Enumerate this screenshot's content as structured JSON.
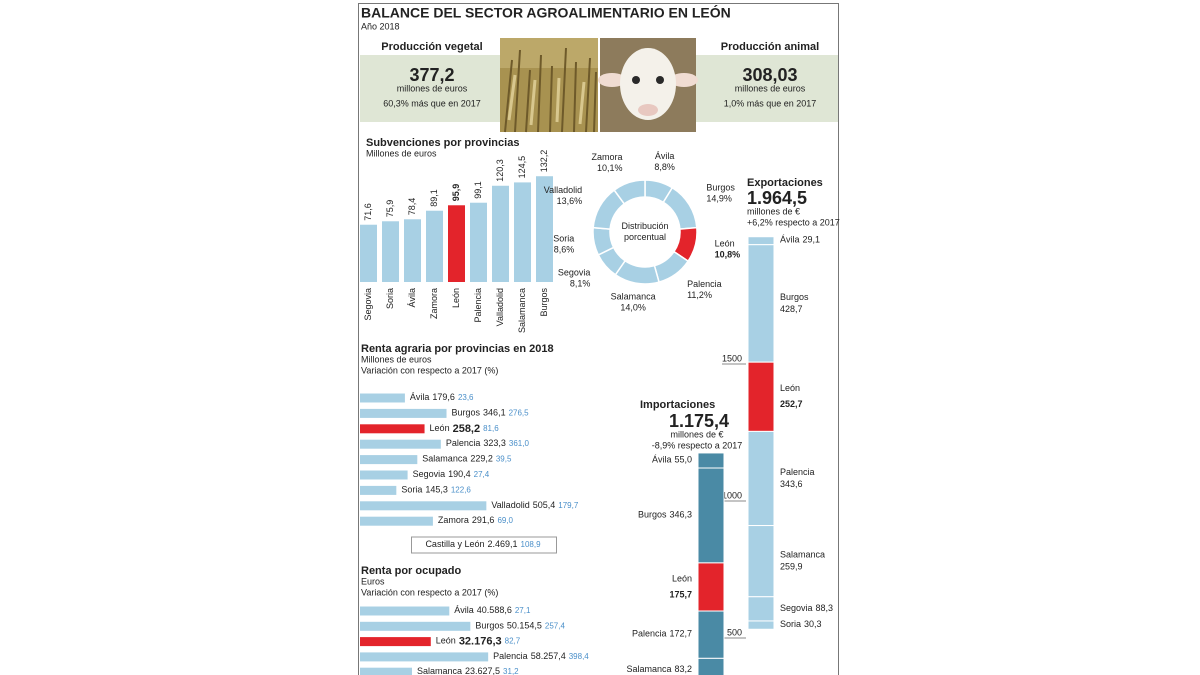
{
  "header": {
    "title": "BALANCE DEL SECTOR AGROALIMENTARIO EN LEÓN",
    "subtitle": "Año 2018"
  },
  "production": [
    {
      "title": "Producción vegetal",
      "value": "377,2",
      "unit": "millones de euros",
      "change": "60,3% más que en 2017"
    },
    {
      "title": "Producción animal",
      "value": "308,03",
      "unit": "millones de euros",
      "change": "1,0% más que en 2017"
    }
  ],
  "chart_data": [
    {
      "type": "bar",
      "title": "Subvenciones por provincias",
      "subtitle": "Millones de euros",
      "categories": [
        "Segovia",
        "Soria",
        "Ávila",
        "Zamora",
        "León",
        "Palencia",
        "Valladolid",
        "Salamanca",
        "Burgos"
      ],
      "values": [
        71.6,
        75.9,
        78.4,
        89.1,
        95.9,
        99.1,
        120.3,
        124.5,
        132.2
      ],
      "value_labels": [
        "71,6",
        "75,9",
        "78,4",
        "89,1",
        "95,9",
        "99,1",
        "120,3",
        "124,5",
        "132,2"
      ],
      "colors": [
        "#a8d0e4",
        "#a8d0e4",
        "#a8d0e4",
        "#a8d0e4",
        "#e3242b",
        "#a8d0e4",
        "#a8d0e4",
        "#a8d0e4",
        "#a8d0e4"
      ],
      "highlight_color": "#e3242b"
    },
    {
      "type": "donut",
      "center_label": "Distribución porcentual",
      "categories": [
        "Ávila",
        "Burgos",
        "León",
        "Palencia",
        "Salamanca",
        "Segovia",
        "Soria",
        "Valladolid",
        "Zamora"
      ],
      "values": [
        8.8,
        14.9,
        10.8,
        11.2,
        14.0,
        8.1,
        8.6,
        13.6,
        10.1
      ],
      "value_labels": [
        "8,8%",
        "14,9%",
        "10,8%",
        "11,2%",
        "14,0%",
        "8,1%",
        "8,6%",
        "13,6%",
        "10,1%"
      ],
      "colors": [
        "#a8d0e4",
        "#a8d0e4",
        "#e3242b",
        "#a8d0e4",
        "#a8d0e4",
        "#a8d0e4",
        "#a8d0e4",
        "#a8d0e4",
        "#a8d0e4"
      ],
      "highlight_color": "#e3242b"
    },
    {
      "type": "hbar",
      "title": "Renta agraria por provincias en 2018",
      "subtitle": "Millones de euros",
      "note": "Variación con respecto a 2017 (%)",
      "categories": [
        "Ávila",
        "Burgos",
        "León",
        "Palencia",
        "Salamanca",
        "Segovia",
        "Soria",
        "Valladolid",
        "Zamora"
      ],
      "values": [
        179.6,
        346.1,
        258.2,
        323.3,
        229.2,
        190.4,
        145.3,
        505.4,
        291.6
      ],
      "value_labels": [
        "179,6",
        "346,1",
        "258,2",
        "323,3",
        "229,2",
        "190,4",
        "145,3",
        "505,4",
        "291,6"
      ],
      "changes": [
        23.6,
        276.5,
        81.6,
        361.0,
        39.5,
        27.4,
        122.6,
        179.7,
        69.0
      ],
      "change_labels": [
        "23,6",
        "276,5",
        "81,6",
        "361,0",
        "39,5",
        "27,4",
        "122,6",
        "179,7",
        "69,0"
      ],
      "colors": [
        "#a8d0e4",
        "#a8d0e4",
        "#e3242b",
        "#a8d0e4",
        "#a8d0e4",
        "#a8d0e4",
        "#a8d0e4",
        "#a8d0e4",
        "#a8d0e4"
      ],
      "highlight_color": "#e3242b",
      "change_color": "#4a8fc9",
      "total": {
        "name": "Castilla y León",
        "value": 2469.1,
        "value_label": "2.469,1",
        "change": 108.9,
        "change_label": "108,9"
      }
    },
    {
      "type": "hbar",
      "title": "Renta por ocupado",
      "subtitle": "Euros",
      "note": "Variación con respecto a 2017 (%)",
      "categories": [
        "Ávila",
        "Burgos",
        "León",
        "Palencia",
        "Salamanca"
      ],
      "values": [
        40588.6,
        50154.5,
        32176.3,
        58257.4,
        23627.5
      ],
      "value_labels": [
        "40.588,6",
        "50.154,5",
        "32.176,3",
        "58.257,4",
        "23.627,5"
      ],
      "changes": [
        27.1,
        257.4,
        82.7,
        398.4,
        31.2
      ],
      "change_labels": [
        "27,1",
        "257,4",
        "82,7",
        "398,4",
        "31,2"
      ],
      "colors": [
        "#a8d0e4",
        "#a8d0e4",
        "#e3242b",
        "#a8d0e4",
        "#a8d0e4"
      ],
      "highlight_color": "#e3242b",
      "change_color": "#4a8fc9"
    },
    {
      "type": "stacked_columns",
      "ylim": [
        0,
        2000
      ],
      "yticks": [
        500,
        1000,
        1500
      ],
      "highlight_color": "#e3242b",
      "series": [
        {
          "name": "Exportaciones",
          "total": 1964.5,
          "total_label": "1.964,5",
          "unit": "millones de €",
          "note": "+6,2% respecto a 2017",
          "categories": [
            "Ávila",
            "Burgos",
            "León",
            "Palencia",
            "Salamanca",
            "Segovia",
            "Soria"
          ],
          "values": [
            29.1,
            428.7,
            252.7,
            343.6,
            259.9,
            88.3,
            30.3
          ],
          "value_labels": [
            "29,1",
            "428,7",
            "252,7",
            "343,6",
            "259,9",
            "88,3",
            "30,3"
          ],
          "colors": [
            "#a8d0e4",
            "#a8d0e4",
            "#e3242b",
            "#a8d0e4",
            "#a8d0e4",
            "#a8d0e4",
            "#a8d0e4"
          ]
        },
        {
          "name": "Importaciones",
          "total": 1175.4,
          "total_label": "1.175,4",
          "unit": "millones de €",
          "note": "-8,9% respecto a 2017",
          "categories": [
            "Ávila",
            "Burgos",
            "León",
            "Palencia",
            "Salamanca"
          ],
          "values": [
            55.0,
            346.3,
            175.7,
            172.7,
            83.2
          ],
          "value_labels": [
            "55,0",
            "346,3",
            "175,7",
            "172,7",
            "83,2"
          ],
          "colors": [
            "#4a8aa5",
            "#4a8aa5",
            "#e3242b",
            "#4a8aa5",
            "#4a8aa5"
          ]
        }
      ]
    }
  ]
}
